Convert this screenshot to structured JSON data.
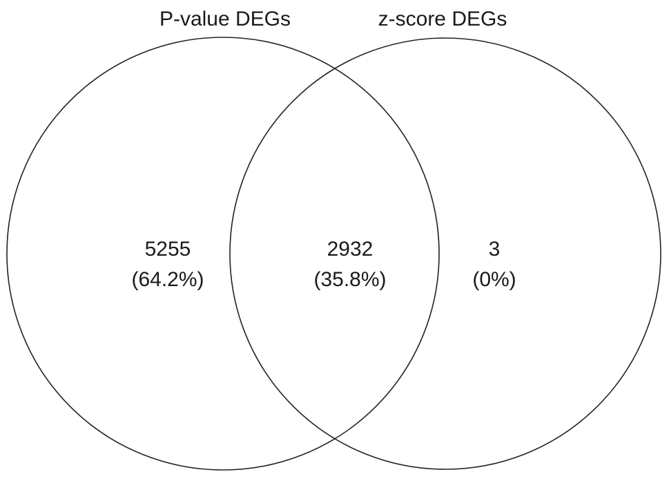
{
  "sets": [
    {
      "label": "P-value DEGs"
    },
    {
      "label": "z-score DEGs"
    }
  ],
  "regions": [
    {
      "count": "5255",
      "share": "(64.2%)"
    },
    {
      "count": "2932",
      "share": "(35.8%)"
    },
    {
      "count": "3",
      "share": "(0%)"
    }
  ]
}
